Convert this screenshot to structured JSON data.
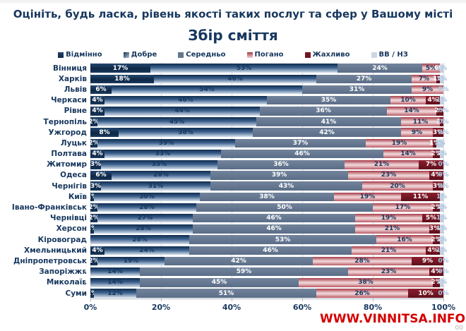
{
  "title": "Оцініть, будь ласка, рівень якості таких послуг та сфер у Вашому місті",
  "subtitle": "Збір сміття",
  "legend": {
    "items": [
      {
        "label": "Відмінно"
      },
      {
        "label": "Добре"
      },
      {
        "label": "Середньо"
      },
      {
        "label": "Погано"
      },
      {
        "label": "Жахливо"
      },
      {
        "label": "ВВ / НЗ"
      }
    ]
  },
  "colors": {
    "title_navy": "#17375E",
    "vidminno": "#0d2745",
    "dobre": "#3c618d",
    "seredno": "#64778f",
    "pohano": "#e9c6c9",
    "zhakhlyvo": "#701623",
    "vv_nz": "#ccd7e4",
    "watermark_red": "#d40000",
    "gridline": "#d9d9d9"
  },
  "chart_data": {
    "type": "bar",
    "orientation": "horizontal-stacked",
    "title": "Збір сміття",
    "xlabel": "",
    "ylabel": "",
    "xlim": [
      0,
      100
    ],
    "grid": "vertical",
    "legend_position": "top",
    "xticks": [
      "0%",
      "20%",
      "40%",
      "60%",
      "80%",
      "100%"
    ],
    "series_names": [
      "Відмінно",
      "Добре",
      "Середньо",
      "Погано",
      "Жахливо",
      "ВВ / НЗ"
    ],
    "categories": [
      "Вінниця",
      "Харків",
      "Львів",
      "Черкаси",
      "Рівне",
      "Тернопіль",
      "Ужгород",
      "Луцьк",
      "Полтава",
      "Житомир",
      "Одеса",
      "Чернігів",
      "Київ",
      "Івано-Франківськ",
      "Чернівці",
      "Херсон",
      "Кіровоград",
      "Хмельницький",
      "Дніпропетровськ",
      "Запоріжжя",
      "Миколаїв",
      "Суми"
    ],
    "rows": [
      {
        "city": "Вінниця",
        "values": [
          17,
          53,
          24,
          5,
          0,
          1
        ]
      },
      {
        "city": "Харків",
        "values": [
          18,
          46,
          27,
          7,
          1,
          1
        ]
      },
      {
        "city": "Львів",
        "values": [
          6,
          54,
          31,
          9,
          0,
          0
        ]
      },
      {
        "city": "Черкаси",
        "values": [
          4,
          46,
          35,
          10,
          4,
          1
        ]
      },
      {
        "city": "Рівне",
        "values": [
          4,
          44,
          36,
          14,
          2,
          0
        ]
      },
      {
        "city": "Тернопіль",
        "values": [
          2,
          45,
          41,
          11,
          1,
          0
        ]
      },
      {
        "city": "Ужгород",
        "values": [
          8,
          38,
          42,
          9,
          3,
          0
        ]
      },
      {
        "city": "Луцьк",
        "values": [
          2,
          39,
          37,
          19,
          1,
          2
        ]
      },
      {
        "city": "Полтава",
        "values": [
          4,
          33,
          46,
          14,
          2,
          1
        ]
      },
      {
        "city": "Житомир",
        "values": [
          3,
          33,
          36,
          21,
          7,
          0
        ]
      },
      {
        "city": "Одеса",
        "values": [
          6,
          28,
          39,
          23,
          4,
          0
        ]
      },
      {
        "city": "Чернігів",
        "values": [
          3,
          31,
          43,
          20,
          3,
          0
        ]
      },
      {
        "city": "Київ",
        "values": [
          1,
          30,
          38,
          19,
          11,
          1
        ]
      },
      {
        "city": "Івано-Франківськ",
        "values": [
          2,
          28,
          50,
          17,
          2,
          1
        ]
      },
      {
        "city": "Чернівці",
        "values": [
          2,
          27,
          46,
          19,
          5,
          1
        ]
      },
      {
        "city": "Херсон",
        "values": [
          1,
          28,
          46,
          21,
          3,
          1
        ]
      },
      {
        "city": "Кіровоград",
        "values": [
          0,
          28,
          53,
          16,
          2,
          1
        ]
      },
      {
        "city": "Хмельницький",
        "values": [
          4,
          24,
          46,
          21,
          4,
          1
        ]
      },
      {
        "city": "Дніпропетровськ",
        "values": [
          2,
          19,
          42,
          28,
          9,
          0
        ]
      },
      {
        "city": "Запоріжжя",
        "values": [
          0,
          14,
          59,
          23,
          4,
          0
        ]
      },
      {
        "city": "Миколаїв",
        "values": [
          0,
          14,
          45,
          38,
          2,
          1
        ]
      },
      {
        "city": "Суми",
        "values": [
          1,
          12,
          51,
          26,
          10,
          0
        ]
      }
    ]
  },
  "watermark": "WWW.VINNITSA.INFO",
  "page_number": "00"
}
